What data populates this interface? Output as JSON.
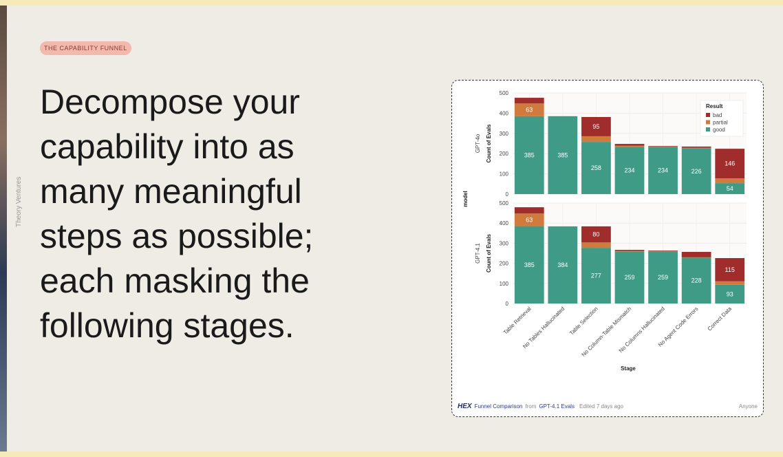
{
  "tag": "THE CAPABILITY FUNNEL",
  "headline": "Decompose your capability into as many meaningful steps as possible; each masking the following stages.",
  "sidebar": "Theory Ventures",
  "chart_data": {
    "type": "bar",
    "stacked": true,
    "facet_label": "model",
    "xlabel": "Stage",
    "ylabel": "Count of Evals",
    "legend_title": "Result",
    "legend": "upper right",
    "facets": [
      "GPT-4o",
      "GPT-4.1"
    ],
    "categories": [
      "Table Retrieval",
      "No Tables Hallucinated",
      "Table Selection",
      "No Column-Table Mismatch",
      "No Columns Hallucinated",
      "No Agent Code Errors",
      "Correct Data"
    ],
    "series": [
      {
        "name": "good",
        "color": "#3f9a86",
        "values": [
          [
            385,
            385,
            258,
            234,
            234,
            226,
            54
          ],
          [
            385,
            384,
            277,
            259,
            259,
            228,
            93
          ]
        ]
      },
      {
        "name": "partial",
        "color": "#d07a3e",
        "values": [
          [
            63,
            0,
            28,
            5,
            2,
            3,
            24
          ],
          [
            63,
            0,
            27,
            3,
            2,
            2,
            18
          ]
        ]
      },
      {
        "name": "bad",
        "color": "#a02c2c",
        "values": [
          [
            28,
            0,
            95,
            9,
            2,
            6,
            146
          ],
          [
            31,
            0,
            80,
            5,
            3,
            27,
            115
          ]
        ]
      }
    ],
    "ylim": [
      0,
      500
    ],
    "yticks": [
      0,
      100,
      200,
      300,
      400,
      500
    ],
    "grid": true
  },
  "footer": {
    "logo": "HEX",
    "title": "Funnel Comparison",
    "from": "from",
    "source": "GPT-4.1 Evals",
    "edited": "Edited 7 days ago",
    "access": "Anyone"
  }
}
